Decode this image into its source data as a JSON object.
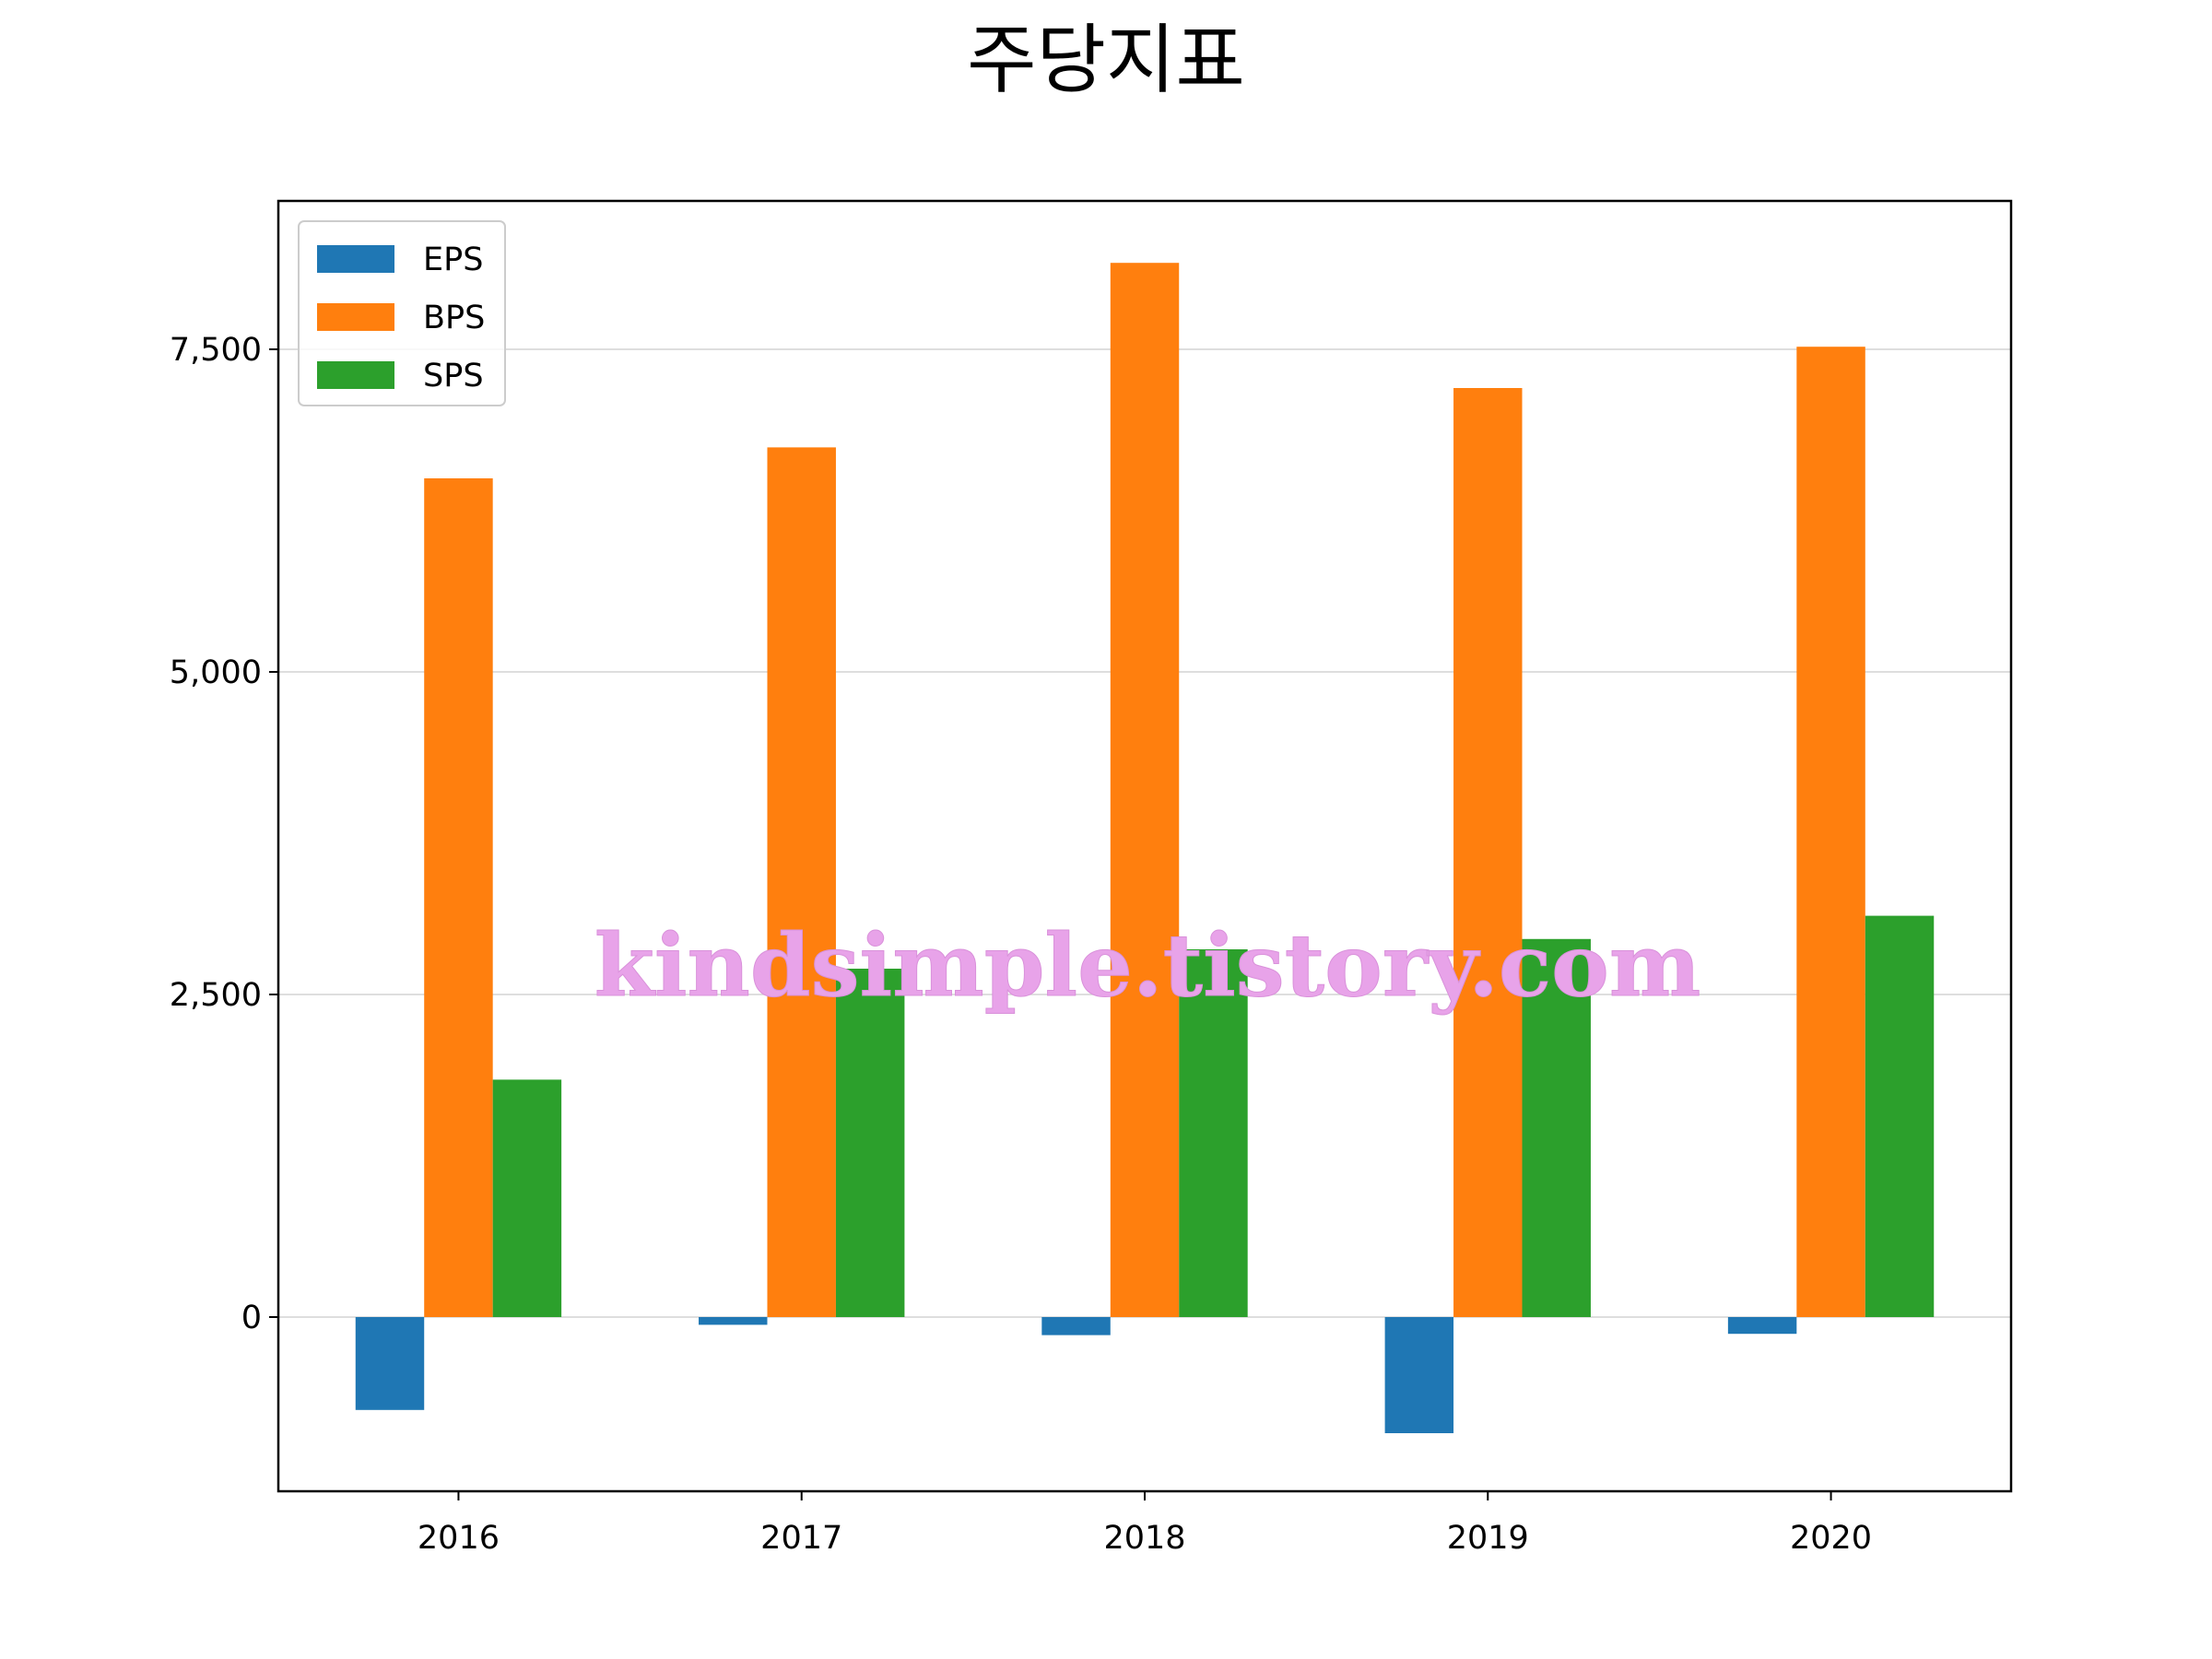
{
  "chart_data": {
    "type": "bar",
    "title": "주당지표",
    "xlabel": "",
    "ylabel": "",
    "categories": [
      "2016",
      "2017",
      "2018",
      "2019",
      "2020"
    ],
    "series": [
      {
        "name": "EPS",
        "color": "#1f77b4",
        "values": [
          -720,
          -60,
          -140,
          -900,
          -130
        ]
      },
      {
        "name": "BPS",
        "color": "#ff7f0e",
        "values": [
          6500,
          6740,
          8170,
          7200,
          7520
        ]
      },
      {
        "name": "SPS",
        "color": "#2ca02c",
        "values": [
          1840,
          2700,
          2850,
          2930,
          3110
        ]
      }
    ],
    "ylim": [
      -1350,
      8650
    ],
    "yticks": [
      0,
      2500,
      5000,
      7500
    ],
    "ytick_labels": [
      "0",
      "2,500",
      "5,000",
      "7,500"
    ],
    "grid": "horizontal",
    "legend_position": "upper-left"
  },
  "watermark": "kindsimple.tistory.com"
}
